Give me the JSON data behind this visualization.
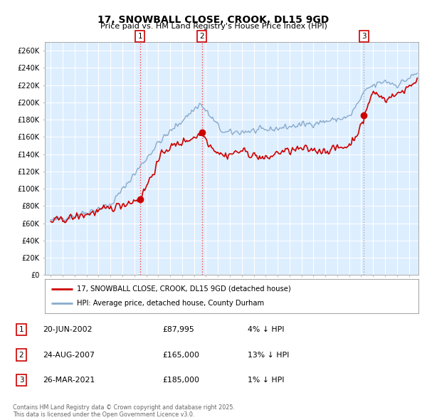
{
  "title": "17, SNOWBALL CLOSE, CROOK, DL15 9GD",
  "subtitle": "Price paid vs. HM Land Registry's House Price Index (HPI)",
  "xlim": [
    1994.5,
    2025.8
  ],
  "ylim": [
    0,
    270000
  ],
  "yticks": [
    0,
    20000,
    40000,
    60000,
    80000,
    100000,
    120000,
    140000,
    160000,
    180000,
    200000,
    220000,
    240000,
    260000
  ],
  "ytick_labels": [
    "£0",
    "£20K",
    "£40K",
    "£60K",
    "£80K",
    "£100K",
    "£120K",
    "£140K",
    "£160K",
    "£180K",
    "£200K",
    "£220K",
    "£240K",
    "£260K"
  ],
  "sale_dates": [
    2002.47,
    2007.65,
    2021.23
  ],
  "sale_prices": [
    87995,
    165000,
    185000
  ],
  "sale_labels": [
    "1",
    "2",
    "3"
  ],
  "vline_colors": [
    "#ff4444",
    "#ff4444",
    "#aaaaaa"
  ],
  "vline_style": ":",
  "red_line_color": "#cc0000",
  "blue_line_color": "#88aacc",
  "legend_label_red": "17, SNOWBALL CLOSE, CROOK, DL15 9GD (detached house)",
  "legend_label_blue": "HPI: Average price, detached house, County Durham",
  "table_entries": [
    {
      "num": "1",
      "date": "20-JUN-2002",
      "price": "£87,995",
      "hpi": "4% ↓ HPI"
    },
    {
      "num": "2",
      "date": "24-AUG-2007",
      "price": "£165,000",
      "hpi": "13% ↓ HPI"
    },
    {
      "num": "3",
      "date": "26-MAR-2021",
      "price": "£185,000",
      "hpi": "1% ↓ HPI"
    }
  ],
  "footer": "Contains HM Land Registry data © Crown copyright and database right 2025.\nThis data is licensed under the Open Government Licence v3.0.",
  "background_color": "#ffffff",
  "plot_bg_color": "#ddeeff",
  "grid_color": "#ffffff"
}
